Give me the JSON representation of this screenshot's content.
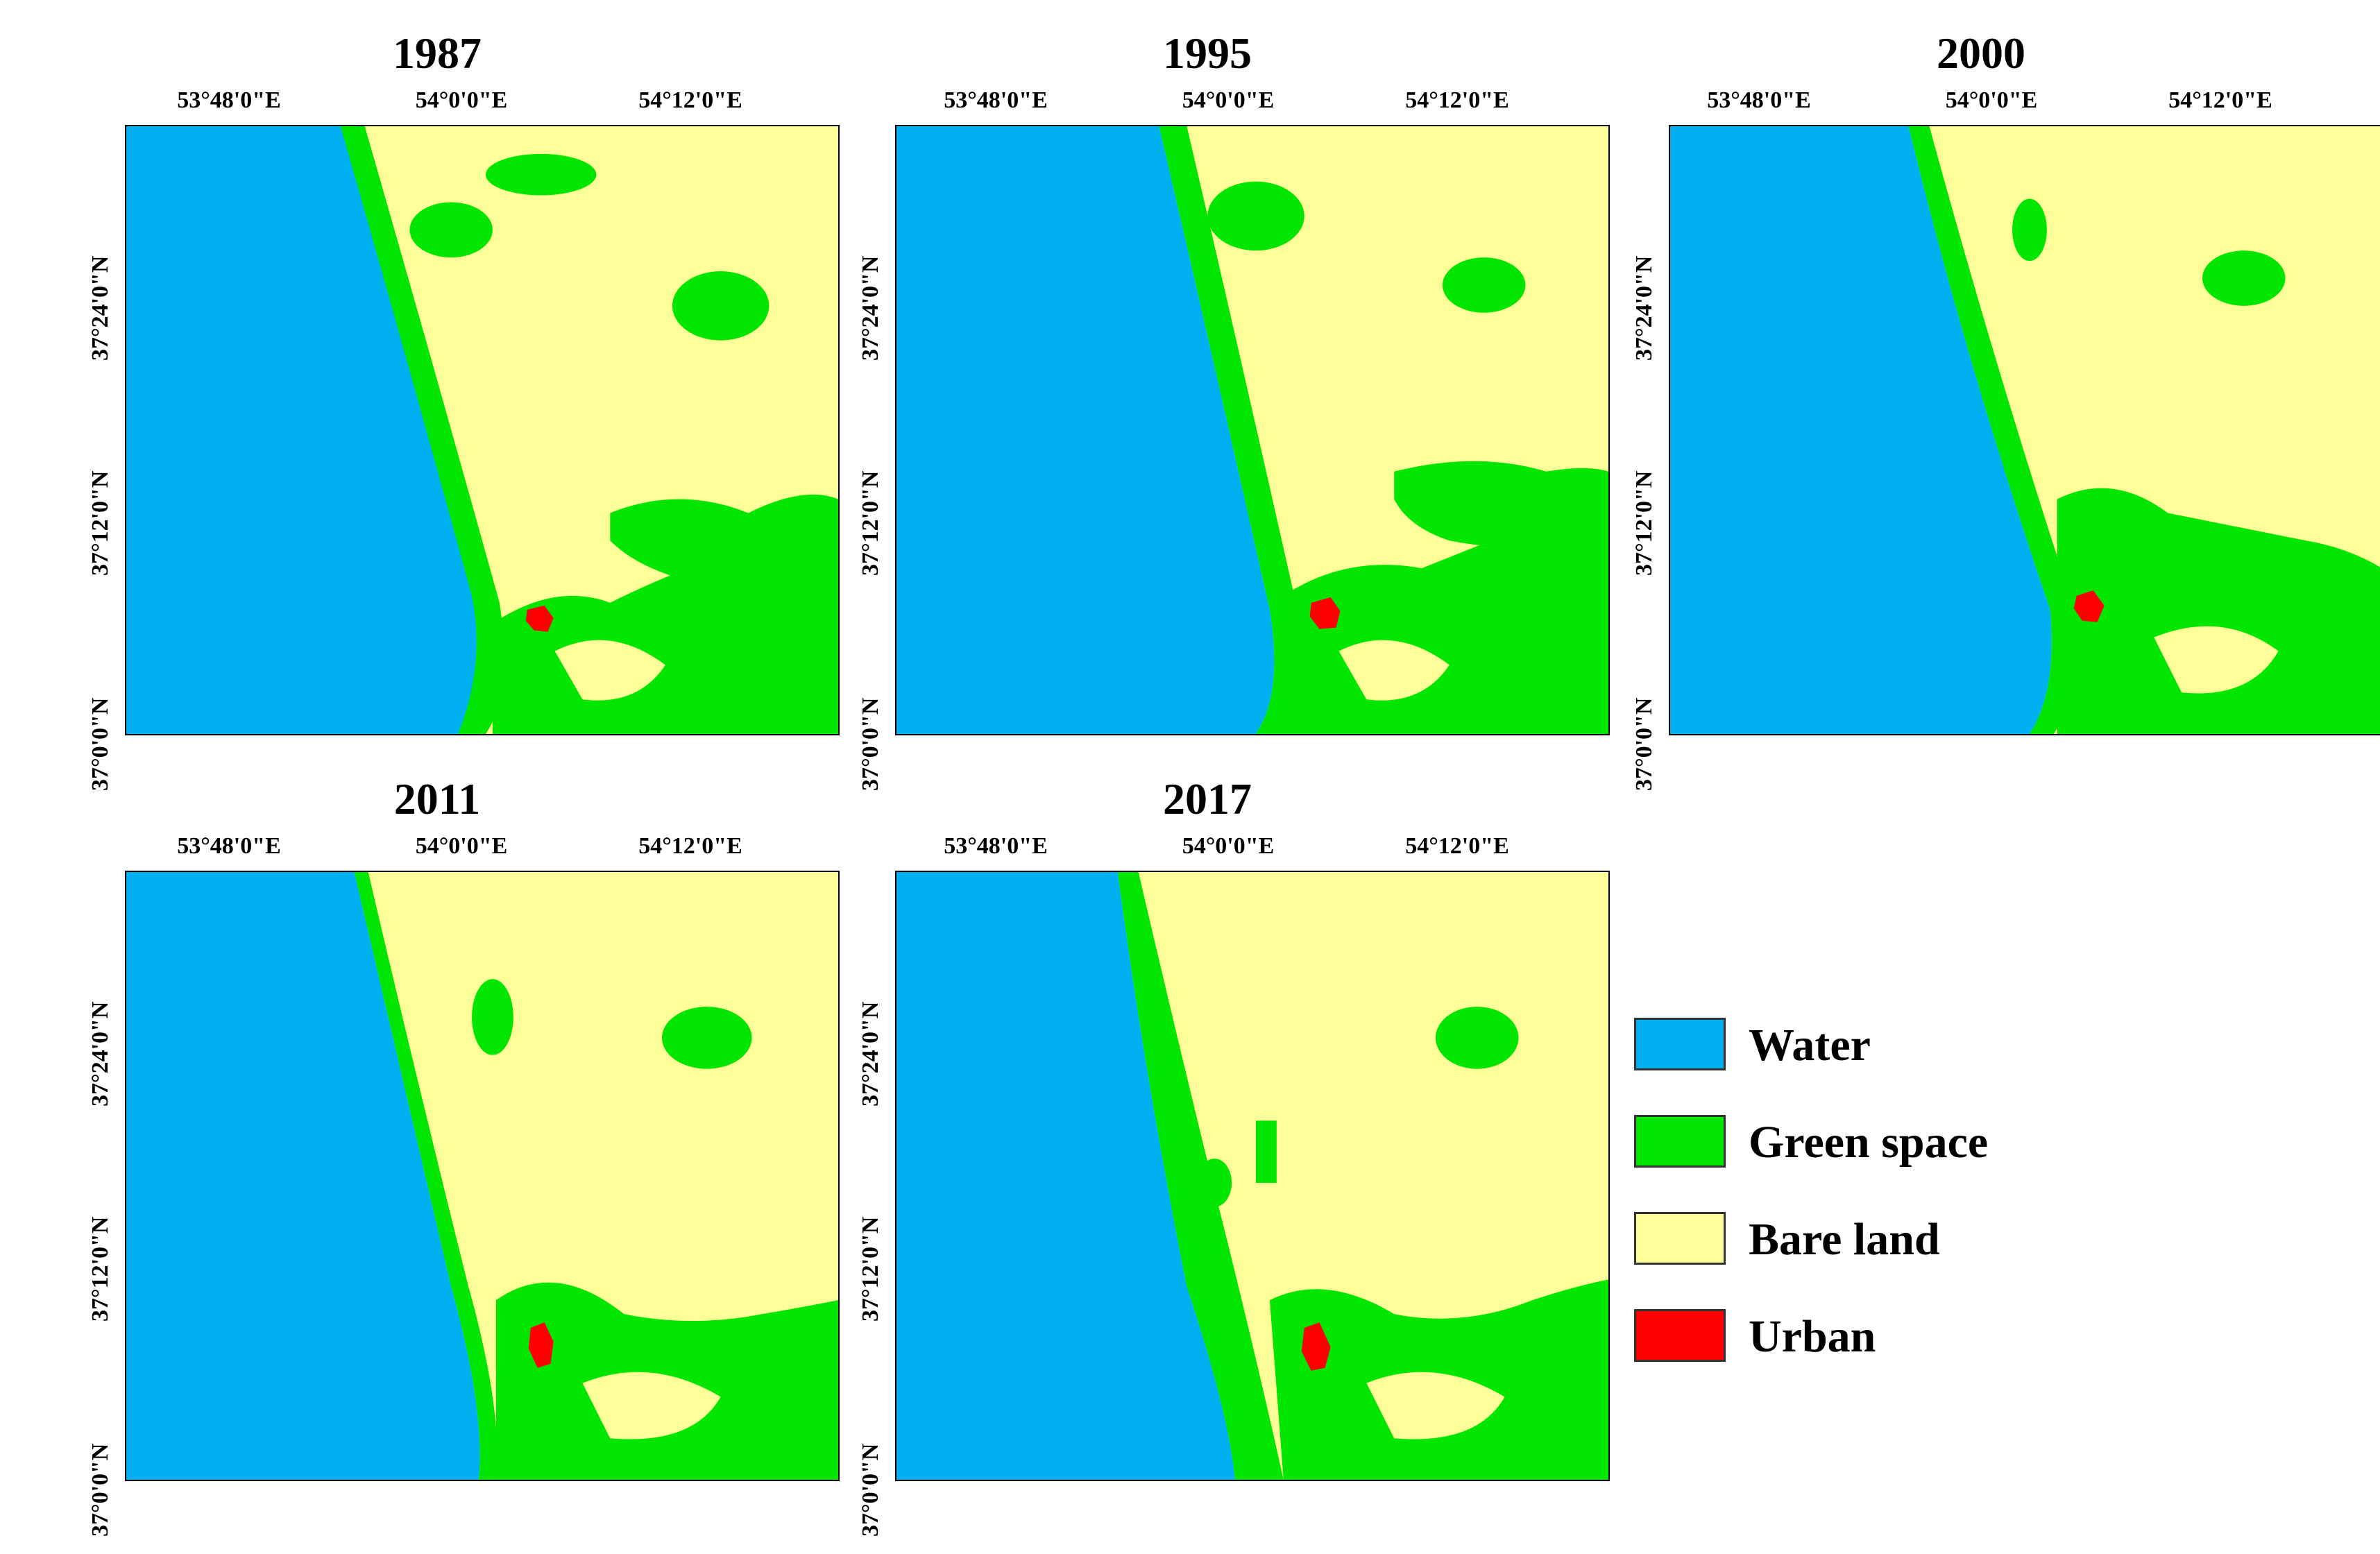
{
  "figure": {
    "panels": [
      {
        "year": "1987",
        "x_ticks": [
          "53°48'0\"E",
          "54°0'0\"E",
          "54°12'0\"E"
        ],
        "y_ticks": [
          "37°0'0\"N",
          "37°12'0\"N",
          "37°24'0\"N"
        ]
      },
      {
        "year": "1995",
        "x_ticks": [
          "53°48'0\"E",
          "54°0'0\"E",
          "54°12'0\"E"
        ],
        "y_ticks": [
          "37°0'0\"N",
          "37°12'0\"N",
          "37°24'0\"N"
        ]
      },
      {
        "year": "2000",
        "x_ticks": [
          "53°48'0\"E",
          "54°0'0\"E",
          "54°12'0\"E"
        ],
        "y_ticks": [
          "37°0'0\"N",
          "37°12'0\"N",
          "37°24'0\"N"
        ]
      },
      {
        "year": "2011",
        "x_ticks": [
          "53°48'0\"E",
          "54°0'0\"E",
          "54°12'0\"E"
        ],
        "y_ticks": [
          "37°0'0\"N",
          "37°12'0\"N",
          "37°24'0\"N"
        ]
      },
      {
        "year": "2017",
        "x_ticks": [
          "53°48'0\"E",
          "54°0'0\"E",
          "54°12'0\"E"
        ],
        "y_ticks": [
          "37°0'0\"N",
          "37°12'0\"N",
          "37°24'0\"N"
        ]
      }
    ],
    "legend": [
      {
        "label": "Water",
        "color": "#00b0f0"
      },
      {
        "label": "Green space",
        "color": "#00e600"
      },
      {
        "label": "Bare land",
        "color": "#ffff99"
      },
      {
        "label": "Urban",
        "color": "#ff0000"
      }
    ]
  }
}
